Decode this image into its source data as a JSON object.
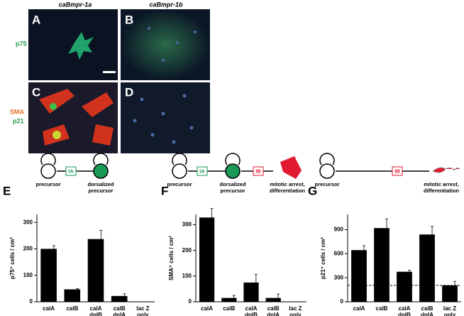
{
  "figure": {
    "column_titles": [
      "caBmpr-1a",
      "caBmpr-1b"
    ],
    "micrograph_labels": [
      "A",
      "B",
      "C",
      "D"
    ],
    "row_labels": {
      "top": "p75",
      "bottom_1": "SMA",
      "bottom_2": "p21"
    },
    "panel_letters": [
      "E",
      "F",
      "G"
    ],
    "diagram_E": {
      "box": "IA",
      "start": "precursor",
      "end": [
        "dorsalized",
        "precursor"
      ]
    },
    "diagram_F": {
      "box_1": "IA",
      "box_2": "IB",
      "start": "precursor",
      "middle": [
        "dorsalized",
        "precursor"
      ],
      "end": [
        "mitotic arrest,",
        "differentiation"
      ]
    },
    "diagram_G": {
      "box": "IB",
      "start": "precursor",
      "end": [
        "mitotic arrest,",
        "differentiation"
      ]
    }
  },
  "chart_data": [
    {
      "type": "bar",
      "ylabel": "p75⁺ cells / cm²",
      "color": "#000000",
      "categories": [
        [
          "calA"
        ],
        [
          "calB"
        ],
        [
          "calA",
          "dnIB"
        ],
        [
          "calB",
          "dnIA"
        ],
        [
          "lac Z",
          "only"
        ]
      ],
      "values": [
        200,
        47,
        237,
        22,
        0
      ],
      "errors": [
        12,
        3,
        33,
        8,
        0
      ],
      "ylim": [
        0,
        330
      ],
      "yticks": [
        0,
        100,
        200,
        300
      ]
    },
    {
      "type": "bar",
      "ylabel": "SMA⁺ cells / cm²",
      "color": "#000000",
      "categories": [
        [
          "calA"
        ],
        [
          "calB"
        ],
        [
          "calA",
          "dnIB"
        ],
        [
          "calB",
          "dnIA"
        ],
        [
          "lac Z",
          "only"
        ]
      ],
      "values": [
        328,
        15,
        75,
        15,
        0
      ],
      "errors": [
        35,
        10,
        32,
        15,
        0
      ],
      "ylim": [
        0,
        340
      ],
      "yticks": [
        0,
        100,
        200,
        300
      ]
    },
    {
      "type": "bar",
      "ylabel": "p21⁺ cells / cm²",
      "color": "#000000",
      "categories": [
        [
          "calA"
        ],
        [
          "calB"
        ],
        [
          "calA",
          "dnIB"
        ],
        [
          "calB",
          "dnIA"
        ],
        [
          "lac Z",
          "only"
        ]
      ],
      "values": [
        645,
        920,
        375,
        840,
        205
      ],
      "errors": [
        55,
        115,
        20,
        100,
        50
      ],
      "ylim": [
        0,
        1090
      ],
      "yticks": [
        0,
        300,
        600,
        900
      ],
      "reference_line": 205
    }
  ]
}
